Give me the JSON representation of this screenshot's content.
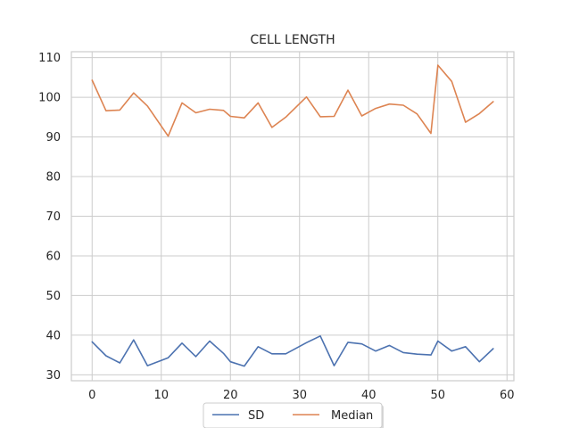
{
  "chart_data": {
    "type": "line",
    "title": "CELL LENGTH",
    "xlabel": "",
    "ylabel": "",
    "xlim": [
      -3,
      61
    ],
    "ylim": [
      28.5,
      111.5
    ],
    "xticks": [
      0,
      10,
      20,
      30,
      40,
      50,
      60
    ],
    "yticks": [
      30,
      40,
      50,
      60,
      70,
      80,
      90,
      100,
      110
    ],
    "grid": true,
    "legend_placement": "bottom-center",
    "x": [
      0,
      2,
      4,
      6,
      8,
      11,
      13,
      15,
      17,
      19,
      20,
      22,
      24,
      26,
      28,
      31,
      33,
      35,
      37,
      39,
      41,
      43,
      45,
      47,
      49,
      50,
      52,
      54,
      56,
      58
    ],
    "series": [
      {
        "name": "SD",
        "color": "#4c72b0",
        "values": [
          38.3,
          34.8,
          33.0,
          38.8,
          32.3,
          34.3,
          38.0,
          34.6,
          38.5,
          35.4,
          33.3,
          32.2,
          37.1,
          35.3,
          35.3,
          38.1,
          39.8,
          32.3,
          38.2,
          37.8,
          36.0,
          37.4,
          35.6,
          35.2,
          35.0,
          38.5,
          36.0,
          37.1,
          33.3,
          36.6
        ]
      },
      {
        "name": "Median",
        "color": "#dd8452",
        "values": [
          104.3,
          96.6,
          96.8,
          101.1,
          97.8,
          90.2,
          98.6,
          96.1,
          97.0,
          96.7,
          95.2,
          94.8,
          98.6,
          92.4,
          95.0,
          100.1,
          95.1,
          95.2,
          101.8,
          95.3,
          97.2,
          98.3,
          98.0,
          95.8,
          90.9,
          108.1,
          104.0,
          93.7,
          95.9,
          98.9
        ]
      }
    ]
  }
}
